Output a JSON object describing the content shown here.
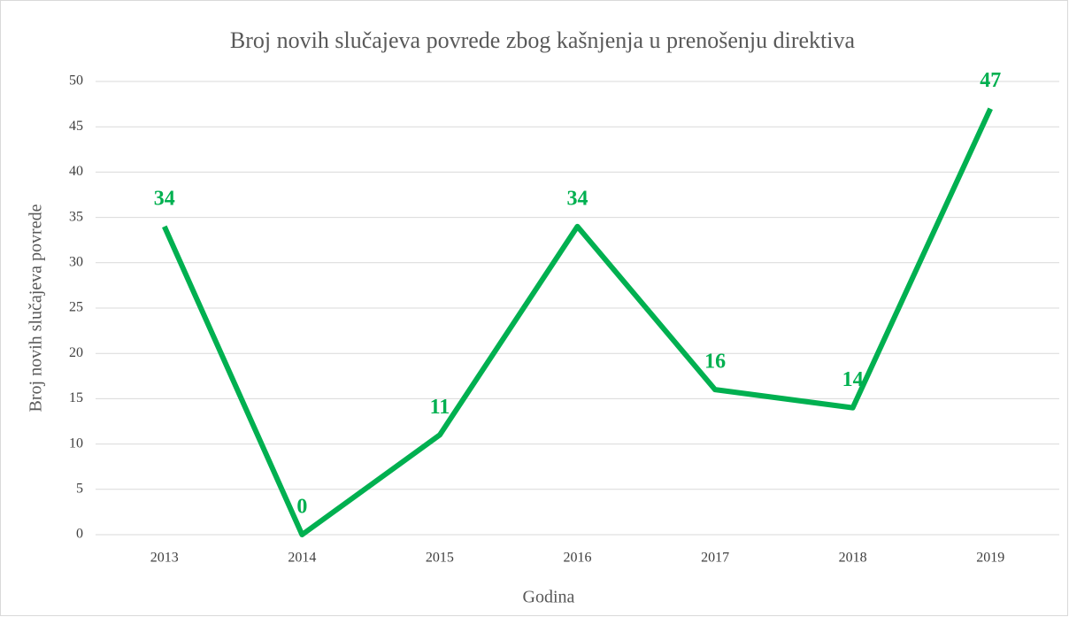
{
  "chart_data": {
    "type": "line",
    "title": "Broj novih slučajeva povrede zbog kašnjenja u prenošenju direktiva",
    "x_label": "Godina",
    "y_label": "Broj novih slučajeva povrede",
    "categories": [
      "2013",
      "2014",
      "2015",
      "2016",
      "2017",
      "2018",
      "2019"
    ],
    "series": [
      {
        "name": "Broj novih slučajeva povrede",
        "color": "#00b050",
        "values": [
          34,
          0,
          11,
          34,
          16,
          14,
          47
        ]
      }
    ],
    "ylim": [
      0,
      50
    ],
    "yticks": [
      0,
      5,
      10,
      15,
      20,
      25,
      30,
      35,
      40,
      45,
      50
    ],
    "grid": true
  }
}
